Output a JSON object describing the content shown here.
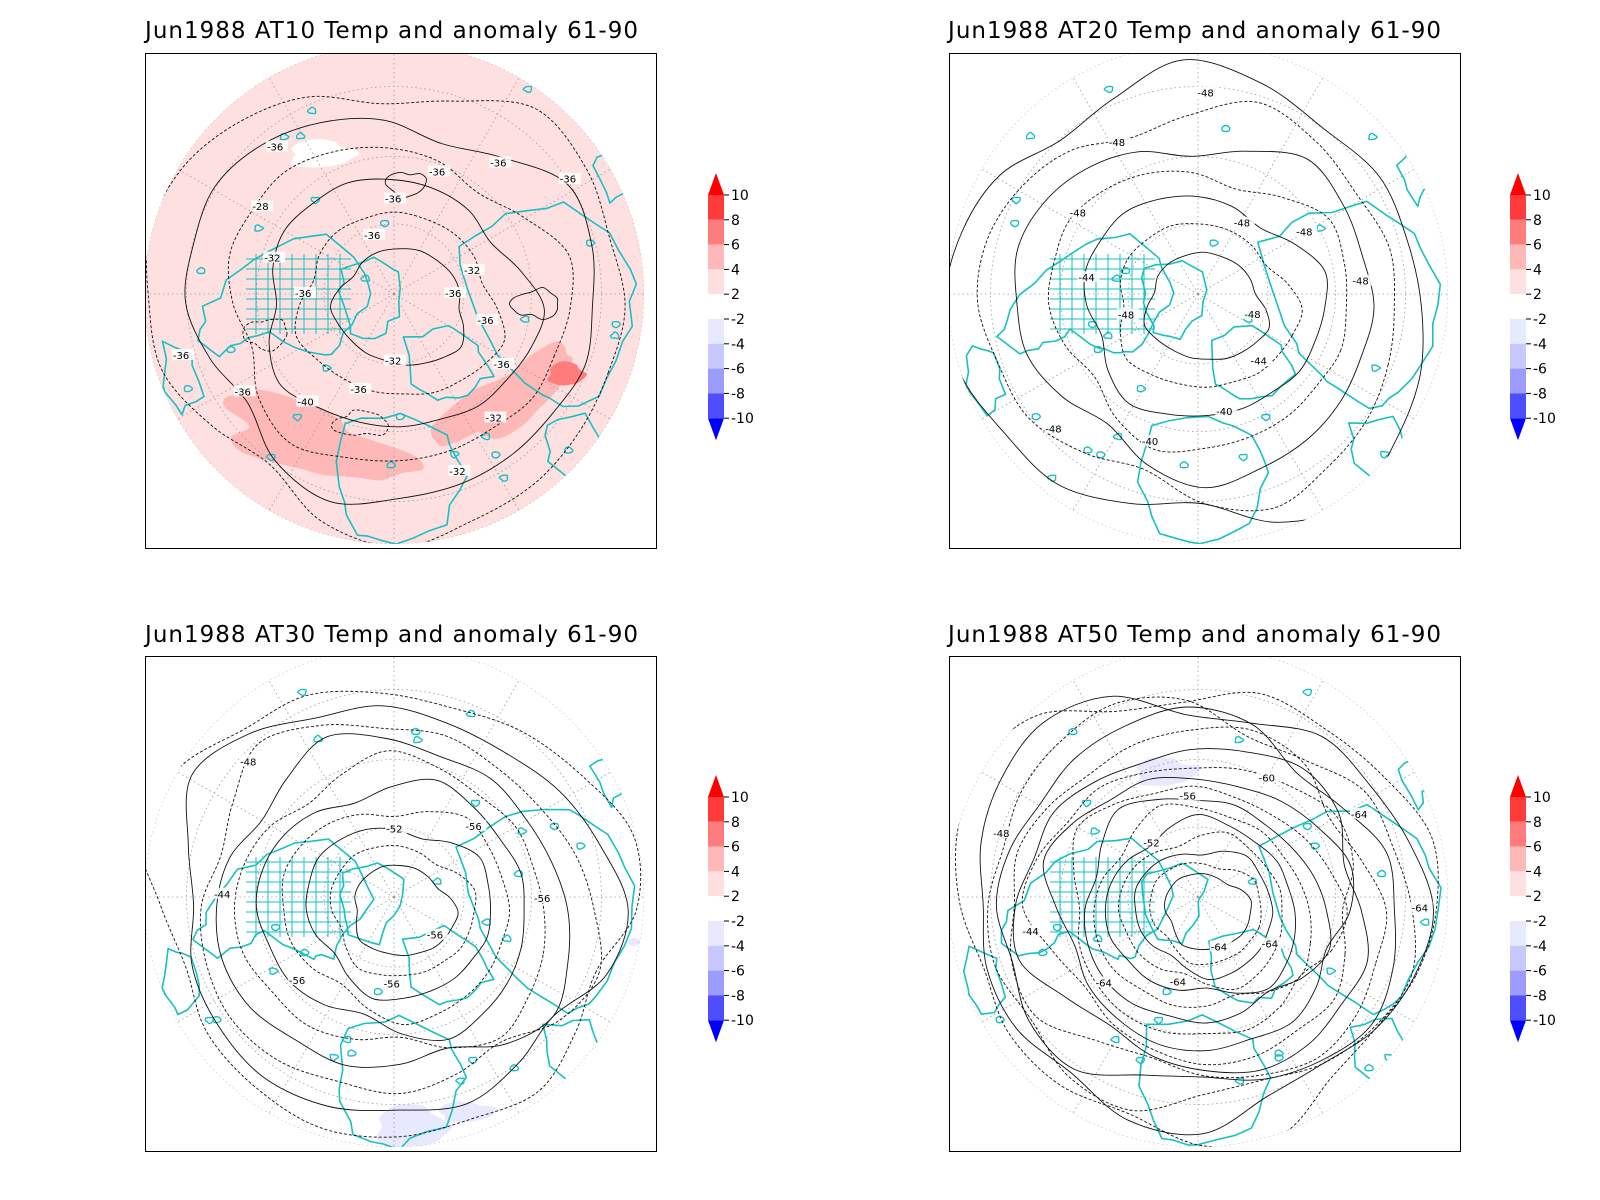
{
  "colors": {
    "coast": "#19c0c0",
    "contour": "#111111",
    "grid": "#9a9a9a",
    "levels": [
      "#0000ff",
      "#4e4eff",
      "#9c9cff",
      "#c8c8ff",
      "#e8e8ff",
      "#ffffff",
      "#ffe0e0",
      "#ffb8b8",
      "#ff7c7c",
      "#ff3a3a",
      "#ff0000"
    ]
  },
  "colorbar": {
    "ticks": [
      "10",
      "8",
      "6",
      "4",
      "2",
      "-2",
      "-4",
      "-6",
      "-8",
      "-10"
    ]
  },
  "panels": [
    {
      "title": "Jun1988 AT10 Temp and anomaly 61-90",
      "anomaly_fill": "positive-2-to-4-widespread, 4-to-6-patches",
      "contour_labels": [
        "-36",
        "-36",
        "-36",
        "-32",
        "-32",
        "-32",
        "-36",
        "-40",
        "-36",
        "-36",
        "-36",
        "-32",
        "-28",
        "-36",
        "-36",
        "-36",
        "-36",
        "-36",
        "-36",
        "-32"
      ]
    },
    {
      "title": "Jun1988 AT20 Temp and anomaly 61-90",
      "anomaly_fill": "none",
      "contour_labels": [
        "-48",
        "-44",
        "-40",
        "-40",
        "-48",
        "-48",
        "-44",
        "-48",
        "-48",
        "-48",
        "-48",
        "-48",
        "-48"
      ]
    },
    {
      "title": "Jun1988 AT30 Temp and anomaly 61-90",
      "anomaly_fill": "small negative -2 patches",
      "contour_labels": [
        "-56",
        "-56",
        "-56",
        "-44",
        "-48",
        "-52",
        "-56",
        "-56"
      ]
    },
    {
      "title": "Jun1988 AT50 Temp and anomaly 61-90",
      "anomaly_fill": "small negative -2 patches",
      "contour_labels": [
        "-64",
        "-64",
        "-64",
        "-44",
        "-48",
        "-52",
        "-56",
        "-60",
        "-64",
        "-64",
        "-64"
      ]
    }
  ]
}
